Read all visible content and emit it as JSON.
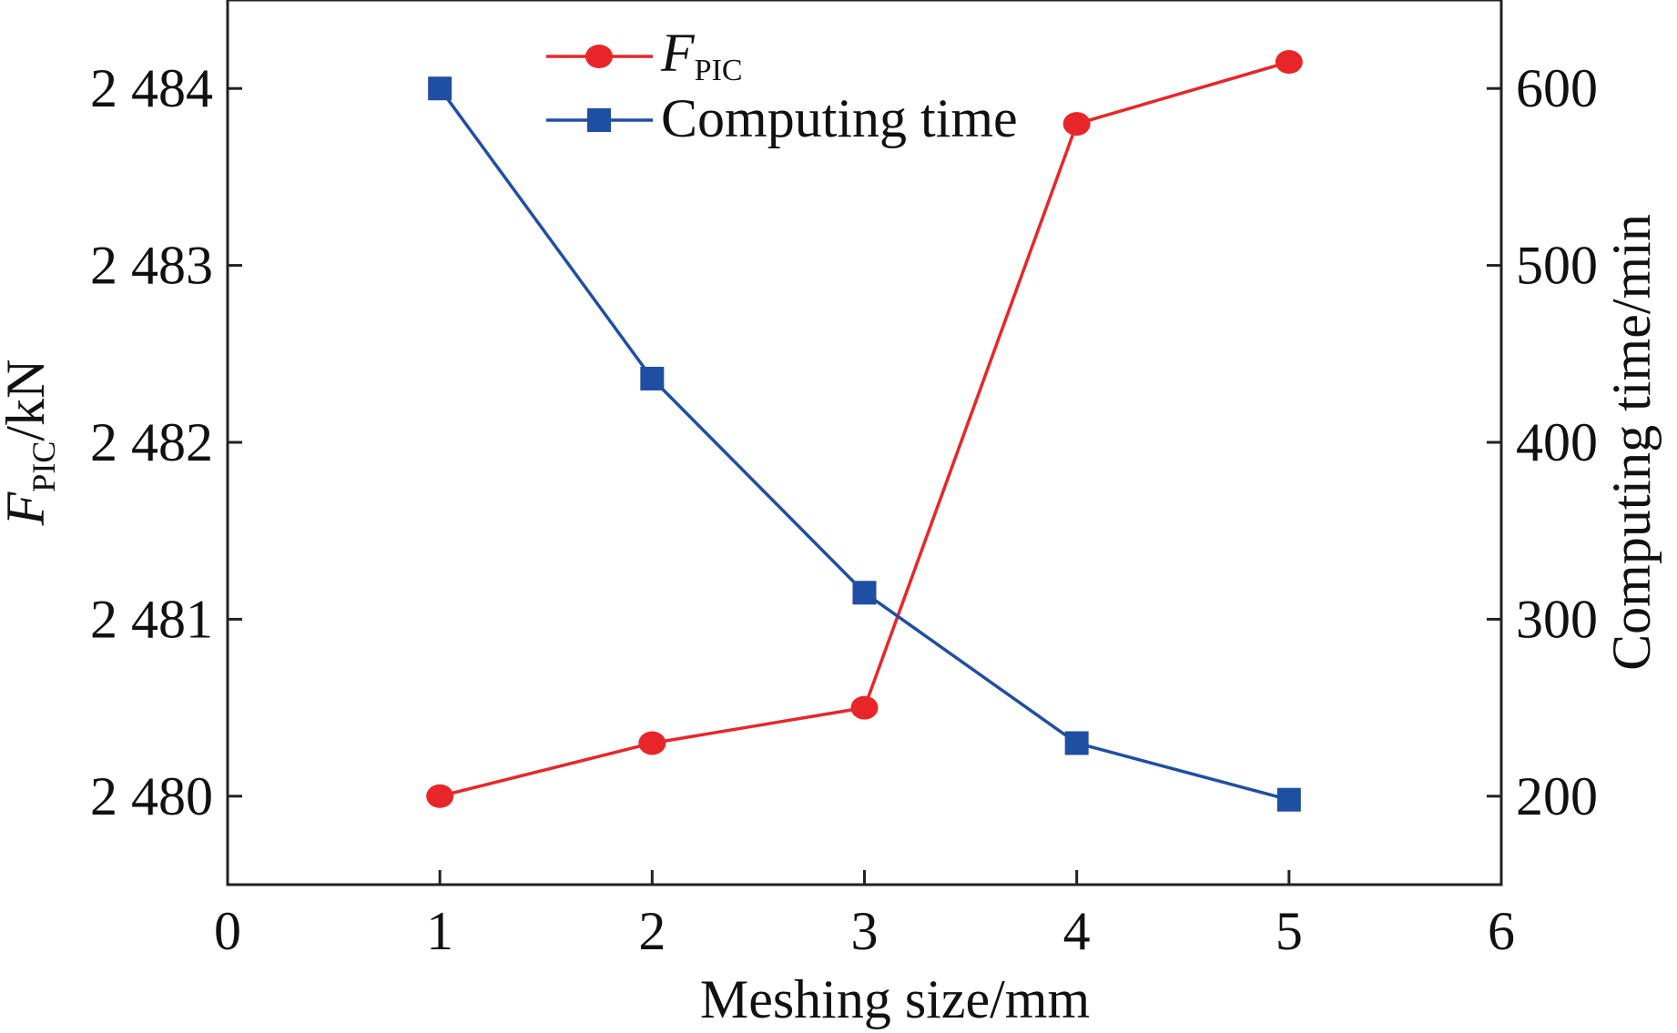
{
  "chart_data": {
    "type": "line",
    "xlabel": "Meshing size/mm",
    "ylabel_left": {
      "main": "F",
      "sub": "PIC",
      "unit": "/kN"
    },
    "ylabel_right": "Computing time/min",
    "x_ticks": [
      "0",
      "1",
      "2",
      "3",
      "4",
      "5",
      "6"
    ],
    "xlim": [
      0,
      6
    ],
    "y_left_ticks": [
      "2 480",
      "2 481",
      "2 482",
      "2 483",
      "2 484"
    ],
    "y_left_tick_values": [
      2480,
      2481,
      2482,
      2483,
      2484
    ],
    "ylim_left": [
      2479.5,
      2484.5
    ],
    "y_right_ticks": [
      "200",
      "300",
      "400",
      "500",
      "600"
    ],
    "y_right_tick_values": [
      200,
      300,
      400,
      500,
      600
    ],
    "ylim_right": [
      150,
      650
    ],
    "grid": false,
    "legend_position": "top-center",
    "series": [
      {
        "name": "F_PIC",
        "legend_main": "F",
        "legend_sub": "PIC",
        "axis": "left",
        "marker": "circle",
        "color": "#e8262a",
        "x": [
          1,
          2,
          3,
          4,
          5
        ],
        "values": [
          2480.0,
          2480.3,
          2480.5,
          2483.8,
          2484.15
        ]
      },
      {
        "name": "Computing time",
        "legend_label": "Computing time",
        "axis": "right",
        "marker": "square",
        "color": "#1f4fa3",
        "x": [
          1,
          2,
          3,
          4,
          5
        ],
        "values": [
          600,
          436,
          315,
          230,
          198
        ]
      }
    ]
  }
}
